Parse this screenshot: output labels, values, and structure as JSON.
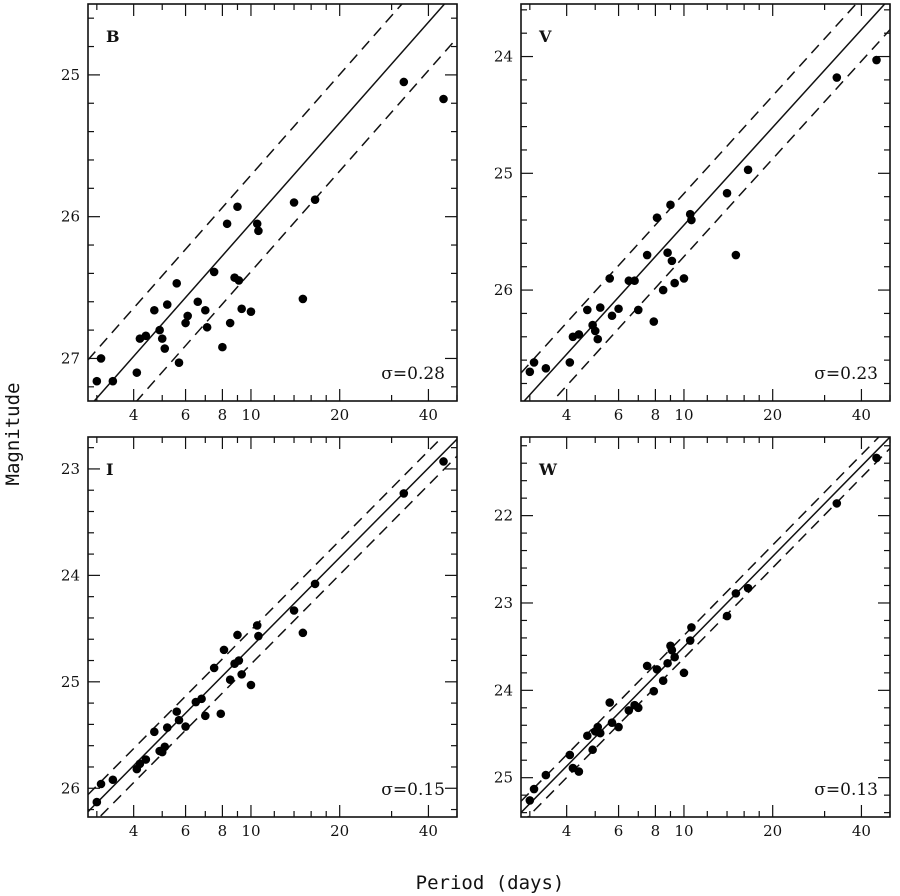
{
  "figure": {
    "xlabel": "Period (days)",
    "ylabel": "Magnitude"
  },
  "chart_data": [
    {
      "type": "scatter",
      "band": "B",
      "sigma_label": "σ=0.28",
      "x_scale": "log",
      "xlim": [
        2.8,
        50
      ],
      "ylim": [
        27.3,
        24.5
      ],
      "y_inverted": true,
      "x_ticks": [
        4,
        6,
        8,
        10,
        20,
        40
      ],
      "y_ticks": [
        25,
        26,
        27
      ],
      "fit_line": [
        [
          2.8,
          27.35
        ],
        [
          50,
          24.4
        ]
      ],
      "scatter_offset": 0.34,
      "points": [
        [
          3.0,
          27.16
        ],
        [
          3.1,
          27.0
        ],
        [
          3.4,
          27.16
        ],
        [
          4.1,
          27.1
        ],
        [
          4.2,
          26.86
        ],
        [
          4.4,
          26.84
        ],
        [
          4.7,
          26.66
        ],
        [
          4.9,
          26.8
        ],
        [
          5.0,
          26.86
        ],
        [
          5.1,
          26.93
        ],
        [
          5.2,
          26.62
        ],
        [
          5.6,
          26.47
        ],
        [
          5.7,
          27.03
        ],
        [
          6.0,
          26.75
        ],
        [
          6.1,
          26.7
        ],
        [
          6.6,
          26.6
        ],
        [
          7.0,
          26.66
        ],
        [
          7.1,
          26.78
        ],
        [
          7.5,
          26.39
        ],
        [
          8.0,
          26.92
        ],
        [
          8.3,
          26.05
        ],
        [
          8.5,
          26.75
        ],
        [
          8.8,
          26.43
        ],
        [
          9.0,
          25.93
        ],
        [
          9.1,
          26.45
        ],
        [
          9.3,
          26.65
        ],
        [
          10.0,
          26.67
        ],
        [
          10.5,
          26.05
        ],
        [
          10.6,
          26.1
        ],
        [
          14.0,
          25.9
        ],
        [
          15.0,
          26.58
        ],
        [
          16.5,
          25.88
        ],
        [
          33.0,
          25.05
        ],
        [
          45.0,
          25.17
        ]
      ]
    },
    {
      "type": "scatter",
      "band": "V",
      "sigma_label": "σ=0.23",
      "x_scale": "log",
      "xlim": [
        2.8,
        50
      ],
      "ylim": [
        26.95,
        23.55
      ],
      "y_inverted": true,
      "x_ticks": [
        4,
        6,
        8,
        10,
        20,
        40
      ],
      "y_ticks": [
        24,
        25,
        26
      ],
      "fit_line": [
        [
          2.8,
          26.98
        ],
        [
          50,
          23.5
        ]
      ],
      "scatter_offset": 0.27,
      "points": [
        [
          3.0,
          26.7
        ],
        [
          3.1,
          26.62
        ],
        [
          3.4,
          26.67
        ],
        [
          4.1,
          26.62
        ],
        [
          4.2,
          26.4
        ],
        [
          4.4,
          26.38
        ],
        [
          4.7,
          26.17
        ],
        [
          4.9,
          26.3
        ],
        [
          5.0,
          26.35
        ],
        [
          5.1,
          26.42
        ],
        [
          5.2,
          26.15
        ],
        [
          5.6,
          25.9
        ],
        [
          5.7,
          26.22
        ],
        [
          6.0,
          26.16
        ],
        [
          6.5,
          25.92
        ],
        [
          6.8,
          25.92
        ],
        [
          7.0,
          26.17
        ],
        [
          7.5,
          25.7
        ],
        [
          7.9,
          26.27
        ],
        [
          8.1,
          25.38
        ],
        [
          8.5,
          26.0
        ],
        [
          8.8,
          25.68
        ],
        [
          9.0,
          25.27
        ],
        [
          9.1,
          25.75
        ],
        [
          9.3,
          25.94
        ],
        [
          10.0,
          25.9
        ],
        [
          10.5,
          25.35
        ],
        [
          10.6,
          25.4
        ],
        [
          14.0,
          25.17
        ],
        [
          15.0,
          25.7
        ],
        [
          16.5,
          24.97
        ],
        [
          33.0,
          24.18
        ],
        [
          45.0,
          24.03
        ]
      ]
    },
    {
      "type": "scatter",
      "band": "I",
      "sigma_label": "σ=0.15",
      "x_scale": "log",
      "xlim": [
        2.8,
        50
      ],
      "ylim": [
        26.27,
        22.7
      ],
      "y_inverted": true,
      "x_ticks": [
        4,
        6,
        8,
        10,
        20,
        40
      ],
      "y_ticks": [
        23,
        24,
        25,
        26
      ],
      "fit_line": [
        [
          2.8,
          26.22
        ],
        [
          50,
          22.72
        ]
      ],
      "scatter_offset": 0.16,
      "points": [
        [
          3.0,
          26.13
        ],
        [
          3.1,
          25.96
        ],
        [
          3.4,
          25.92
        ],
        [
          4.1,
          25.82
        ],
        [
          4.2,
          25.77
        ],
        [
          4.4,
          25.73
        ],
        [
          4.7,
          25.47
        ],
        [
          4.9,
          25.65
        ],
        [
          5.0,
          25.66
        ],
        [
          5.1,
          25.61
        ],
        [
          5.2,
          25.43
        ],
        [
          5.6,
          25.28
        ],
        [
          5.7,
          25.36
        ],
        [
          6.0,
          25.42
        ],
        [
          6.5,
          25.19
        ],
        [
          6.8,
          25.16
        ],
        [
          7.0,
          25.32
        ],
        [
          7.5,
          24.87
        ],
        [
          7.9,
          25.3
        ],
        [
          8.1,
          24.7
        ],
        [
          8.5,
          24.98
        ],
        [
          8.8,
          24.83
        ],
        [
          9.0,
          24.56
        ],
        [
          9.1,
          24.8
        ],
        [
          9.3,
          24.93
        ],
        [
          10.0,
          25.03
        ],
        [
          10.5,
          24.47
        ],
        [
          10.6,
          24.57
        ],
        [
          14.0,
          24.33
        ],
        [
          15.0,
          24.54
        ],
        [
          16.5,
          24.08
        ],
        [
          33.0,
          23.23
        ],
        [
          45.0,
          22.93
        ]
      ]
    },
    {
      "type": "scatter",
      "band": "W",
      "sigma_label": "σ=0.13",
      "x_scale": "log",
      "xlim": [
        2.8,
        50
      ],
      "ylim": [
        25.45,
        21.1
      ],
      "y_inverted": true,
      "x_ticks": [
        4,
        6,
        8,
        10,
        20,
        40
      ],
      "y_ticks": [
        22,
        23,
        24,
        25
      ],
      "fit_line": [
        [
          2.8,
          25.4
        ],
        [
          50,
          21.1
        ]
      ],
      "scatter_offset": 0.13,
      "points": [
        [
          3.0,
          25.26
        ],
        [
          3.1,
          25.13
        ],
        [
          3.4,
          24.97
        ],
        [
          4.1,
          24.74
        ],
        [
          4.2,
          24.89
        ],
        [
          4.4,
          24.93
        ],
        [
          4.7,
          24.52
        ],
        [
          4.9,
          24.68
        ],
        [
          5.0,
          24.47
        ],
        [
          5.1,
          24.42
        ],
        [
          5.2,
          24.49
        ],
        [
          5.6,
          24.14
        ],
        [
          5.7,
          24.37
        ],
        [
          6.0,
          24.42
        ],
        [
          6.5,
          24.23
        ],
        [
          6.8,
          24.17
        ],
        [
          7.0,
          24.2
        ],
        [
          7.5,
          23.72
        ],
        [
          7.9,
          24.01
        ],
        [
          8.1,
          23.76
        ],
        [
          8.5,
          23.89
        ],
        [
          8.8,
          23.69
        ],
        [
          9.0,
          23.49
        ],
        [
          9.1,
          23.54
        ],
        [
          9.3,
          23.62
        ],
        [
          10.0,
          23.8
        ],
        [
          10.5,
          23.43
        ],
        [
          10.6,
          23.28
        ],
        [
          14.0,
          23.15
        ],
        [
          15.0,
          22.89
        ],
        [
          16.5,
          22.83
        ],
        [
          33.0,
          21.86
        ],
        [
          45.0,
          21.34
        ]
      ]
    }
  ]
}
